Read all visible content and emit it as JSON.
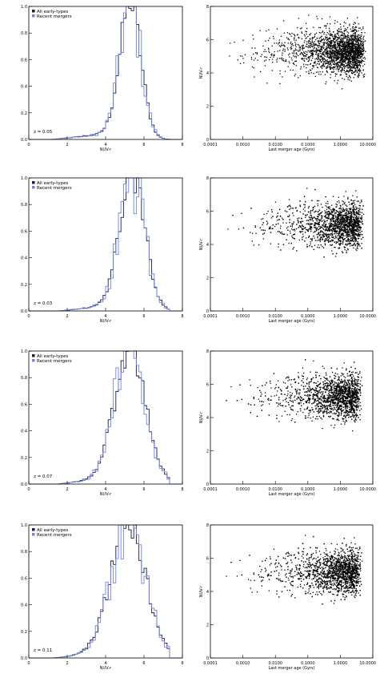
{
  "legend": {
    "all": "All early-types",
    "recent": "Recent mergers"
  },
  "colors": {
    "all": "#1a1a40",
    "recent": "#6f86e0",
    "scatter": "#000000"
  },
  "chart_data": [
    {
      "type": "histogram",
      "panel": "hist",
      "row": 0,
      "annotation": "z = 0.05",
      "xlabel": "NUV-r",
      "ylabel": "",
      "xlim": [
        0,
        8
      ],
      "ylim": [
        0,
        1.0
      ],
      "xticks": [
        "0",
        "2",
        "4",
        "6",
        "8"
      ],
      "yticks": [
        "0.0",
        "0.2",
        "0.4",
        "0.6",
        "0.8",
        "1.0"
      ],
      "peak": 5.3,
      "sigma": 0.55,
      "tail_start": 1.2,
      "legend_position": "top-left"
    },
    {
      "type": "scatter",
      "panel": "scatter",
      "row": 0,
      "xlabel": "Last merger age (Gyrs)",
      "ylabel": "NUV-r",
      "xscale": "log",
      "xlim": [
        0.0001,
        10.0
      ],
      "xticks": [
        "0.0001",
        "0.0010",
        "0.0100",
        "0.1000",
        "1.0000",
        "10.0000"
      ],
      "ylim": [
        0,
        8
      ],
      "yticks": [
        "0",
        "2",
        "4",
        "6",
        "8"
      ],
      "density_center_log": 0.6,
      "density_center_y": 5.3,
      "n_points": 2200
    },
    {
      "type": "histogram",
      "panel": "hist",
      "row": 1,
      "annotation": "z = 0.03",
      "xlabel": "NUV-r",
      "ylabel": "",
      "xlim": [
        0,
        8
      ],
      "ylim": [
        0,
        1.0
      ],
      "xticks": [
        "0",
        "2",
        "4",
        "6",
        "8"
      ],
      "yticks": [
        "0.0",
        "0.2",
        "0.4",
        "0.6",
        "0.8",
        "1.0"
      ],
      "peak": 5.4,
      "sigma": 0.65,
      "tail_start": 1.6,
      "legend_position": "top-left"
    },
    {
      "type": "scatter",
      "panel": "scatter",
      "row": 1,
      "xlabel": "Last merger age (Gyrs)",
      "ylabel": "NUV-r",
      "xscale": "log",
      "xlim": [
        0.0001,
        10.0
      ],
      "xticks": [
        "0.0001",
        "0.0010",
        "0.0100",
        "0.1000",
        "1.0000",
        "10.0000"
      ],
      "ylim": [
        0,
        8
      ],
      "yticks": [
        "0",
        "2",
        "4",
        "6",
        "8"
      ],
      "density_center_log": 0.55,
      "density_center_y": 5.2,
      "n_points": 2200
    },
    {
      "type": "histogram",
      "panel": "hist",
      "row": 2,
      "annotation": "z = 0.07",
      "xlabel": "NUV-r",
      "ylabel": "",
      "xlim": [
        0,
        8
      ],
      "ylim": [
        0,
        1.0
      ],
      "xticks": [
        "0",
        "2",
        "4",
        "6",
        "8"
      ],
      "yticks": [
        "0.0",
        "0.2",
        "0.4",
        "0.6",
        "0.8",
        "1.0"
      ],
      "peak": 5.3,
      "sigma": 0.8,
      "tail_start": 1.5,
      "legend_position": "top-left"
    },
    {
      "type": "scatter",
      "panel": "scatter",
      "row": 2,
      "xlabel": "Last merger age (Gyrs)",
      "ylabel": "NUV-r",
      "xscale": "log",
      "xlim": [
        0.0001,
        10.0
      ],
      "xticks": [
        "0.0001",
        "0.0010",
        "0.0100",
        "0.1000",
        "1.0000",
        "10.0000"
      ],
      "ylim": [
        0,
        8
      ],
      "yticks": [
        "0",
        "2",
        "4",
        "6",
        "8"
      ],
      "density_center_log": 0.5,
      "density_center_y": 5.3,
      "n_points": 2200
    },
    {
      "type": "histogram",
      "panel": "hist",
      "row": 3,
      "annotation": "z = 0.11",
      "xlabel": "NUV-r",
      "ylabel": "",
      "xlim": [
        0,
        8
      ],
      "ylim": [
        0,
        1.0
      ],
      "xticks": [
        "0",
        "2",
        "4",
        "6",
        "8"
      ],
      "yticks": [
        "0.0",
        "0.2",
        "0.4",
        "0.6",
        "0.8",
        "1.0"
      ],
      "peak": 5.2,
      "sigma": 0.9,
      "tail_start": 1.3,
      "legend_position": "top-left"
    },
    {
      "type": "scatter",
      "panel": "scatter",
      "row": 3,
      "xlabel": "Last merger age (Gyrs)",
      "ylabel": "NUV-r",
      "xscale": "log",
      "xlim": [
        0.0001,
        10.0
      ],
      "xticks": [
        "0.0001",
        "0.0010",
        "0.0100",
        "0.1000",
        "1.0000",
        "10.0000"
      ],
      "ylim": [
        0,
        8
      ],
      "yticks": [
        "0",
        "2",
        "4",
        "6",
        "8"
      ],
      "density_center_log": 0.5,
      "density_center_y": 5.2,
      "n_points": 2200
    }
  ]
}
